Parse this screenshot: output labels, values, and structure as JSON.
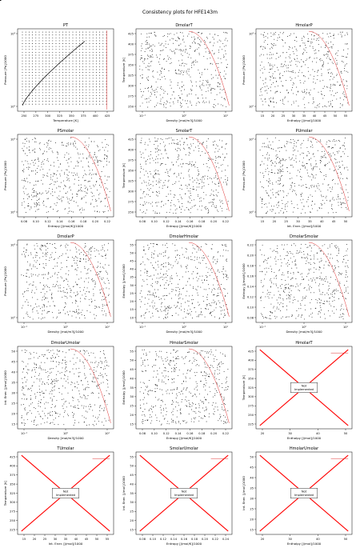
{
  "figure_title": "Consistency plots for HFE143m",
  "not_implemented_label": "Not\nImplemented",
  "colors": {
    "data": "#000000",
    "boundary": "#e03030",
    "cross": "#ff0000"
  },
  "chart_data": [
    {
      "title": "PT",
      "type": "scatter",
      "xlabel": "Temperature [K]",
      "ylabel": "Pressure [Pa]/1000",
      "xlim": [
        240,
        420
      ],
      "ylim_log": [
        70,
        6000
      ],
      "yscale": "log",
      "xticks": [
        "250",
        "275",
        "300",
        "325",
        "350",
        "375",
        "400",
        "425"
      ],
      "yticks": [
        "10²",
        "10³"
      ],
      "shape": "pt"
    },
    {
      "title": "DmolarT",
      "type": "scatter",
      "xlabel": "Density [mol/m3]/1000",
      "ylabel": "Temperature [K]",
      "xscale": "log",
      "xticks": [
        "10⁻¹",
        "10⁰",
        "10¹"
      ],
      "yticks": [
        "250",
        "275",
        "300",
        "325",
        "350",
        "375",
        "400",
        "425"
      ],
      "shape": "dome_log"
    },
    {
      "title": "HmolarP",
      "type": "scatter",
      "xlabel": "Enthalpy [J/mol]/1000",
      "ylabel": "Pressure [Pa]/1000",
      "yscale": "log",
      "xticks": [
        "15",
        "20",
        "25",
        "30",
        "35",
        "40",
        "45",
        "50",
        "55"
      ],
      "yticks": [
        "10²",
        "10³"
      ],
      "shape": "hp"
    },
    {
      "title": "PSmolar",
      "type": "scatter",
      "xlabel": "Entropy [J/mol/K]/1000",
      "ylabel": "Pressure [Pa]/1000",
      "yscale": "log",
      "xticks": [
        "0.08",
        "0.10",
        "0.12",
        "0.14",
        "0.16",
        "0.18",
        "0.20",
        "0.22"
      ],
      "yticks": [
        "10²",
        "10³"
      ],
      "shape": "hp"
    },
    {
      "title": "SmolarT",
      "type": "scatter",
      "xlabel": "Entropy [J/mol/K]/1000",
      "ylabel": "Temperature [K]",
      "xticks": [
        "0.08",
        "0.10",
        "0.12",
        "0.14",
        "0.16",
        "0.18",
        "0.20",
        "0.22"
      ],
      "yticks": [
        "250",
        "275",
        "300",
        "325",
        "350",
        "375",
        "400",
        "425"
      ],
      "shape": "st"
    },
    {
      "title": "PUmolar",
      "type": "scatter",
      "xlabel": "Int. Ener. [J/mol]/1000",
      "ylabel": "Pressure [Pa]/1000",
      "yscale": "log",
      "xticks": [
        "15",
        "20",
        "25",
        "30",
        "35",
        "40",
        "45",
        "50"
      ],
      "yticks": [
        "10²",
        "10³"
      ],
      "shape": "hp"
    },
    {
      "title": "DmolarP",
      "type": "scatter",
      "xlabel": "Density [mol/m3]/1000",
      "ylabel": "Pressure [Pa]/1000",
      "xscale": "log",
      "yscale": "log",
      "xticks": [
        "10⁻¹",
        "10⁰",
        "10¹"
      ],
      "yticks": [
        "10²",
        "10³"
      ],
      "shape": "dp"
    },
    {
      "title": "DmolarHmolar",
      "type": "scatter",
      "xlabel": "Density [mol/m3]/1000",
      "ylabel": "Enthalpy [J/mol]/1000",
      "xscale": "log",
      "xticks": [
        "10⁻¹",
        "10⁰",
        "10¹"
      ],
      "yticks": [
        "10",
        "15",
        "20",
        "25",
        "30",
        "35",
        "40",
        "45",
        "50",
        "55"
      ],
      "shape": "dh"
    },
    {
      "title": "DmolarSmolar",
      "type": "scatter",
      "xlabel": "Density [mol/m3]/1000",
      "ylabel": "Entropy [J/mol/K]/1000",
      "xscale": "log",
      "xticks": [
        "10⁻¹",
        "10⁰",
        "10¹"
      ],
      "yticks": [
        "0.08",
        "0.10",
        "0.12",
        "0.14",
        "0.16",
        "0.18",
        "0.20",
        "0.22"
      ],
      "shape": "dh"
    },
    {
      "title": "DmolarUmolar",
      "type": "scatter",
      "xlabel": "Density [mol/m3]/1000",
      "ylabel": "Int. Ener. [J/mol]/1000",
      "xscale": "log",
      "xticks": [
        "10⁻¹",
        "10⁰",
        "10¹"
      ],
      "yticks": [
        "15",
        "20",
        "25",
        "30",
        "35",
        "40",
        "45",
        "50"
      ],
      "shape": "dh"
    },
    {
      "title": "HmolarSmolar",
      "type": "scatter",
      "xlabel": "Entropy [J/mol/K]/1000",
      "ylabel": "Enthalpy [J/mol]/1000",
      "xticks": [
        "0.08",
        "0.10",
        "0.12",
        "0.14",
        "0.16",
        "0.18",
        "0.20",
        "0.22"
      ],
      "yticks": [
        "15",
        "20",
        "25",
        "30",
        "35",
        "40",
        "45",
        "50",
        "55"
      ],
      "shape": "hs"
    },
    {
      "title": "HmolarT",
      "type": "scatter",
      "xlabel": "Enthalpy [J/mol]/1000",
      "ylabel": "Temperature [K]",
      "xticks": [
        "20",
        "30",
        "40",
        "50"
      ],
      "yticks": [
        "225",
        "250",
        "275",
        "300",
        "325",
        "350",
        "375",
        "400",
        "425"
      ],
      "shape": "ni"
    },
    {
      "title": "TUmolar",
      "type": "scatter",
      "xlabel": "Int. Ener. [J/mol]/1000",
      "ylabel": "Temperature [K]",
      "xticks": [
        "15",
        "20",
        "25",
        "30",
        "35",
        "40",
        "45",
        "50",
        "55"
      ],
      "yticks": [
        "225",
        "250",
        "275",
        "300",
        "325",
        "350",
        "375",
        "400",
        "425"
      ],
      "shape": "ni"
    },
    {
      "title": "SmolarUmolar",
      "type": "scatter",
      "xlabel": "Entropy [J/mol/K]/1000",
      "ylabel": "Int. Ener. [J/mol]/1000",
      "xticks": [
        "0.08",
        "0.10",
        "0.12",
        "0.14",
        "0.16",
        "0.18",
        "0.20",
        "0.22",
        "0.24"
      ],
      "yticks": [
        "15",
        "20",
        "25",
        "30",
        "35",
        "40",
        "45",
        "50",
        "55"
      ],
      "shape": "ni"
    },
    {
      "title": "HmolarUmolar",
      "type": "scatter",
      "xlabel": "Enthalpy [J/mol]/1000",
      "ylabel": "Int. Ener. [J/mol]/1000",
      "xticks": [
        "20",
        "30",
        "40",
        "50"
      ],
      "yticks": [
        "15",
        "20",
        "25",
        "30",
        "35",
        "40",
        "45",
        "50"
      ],
      "shape": "ni"
    }
  ]
}
